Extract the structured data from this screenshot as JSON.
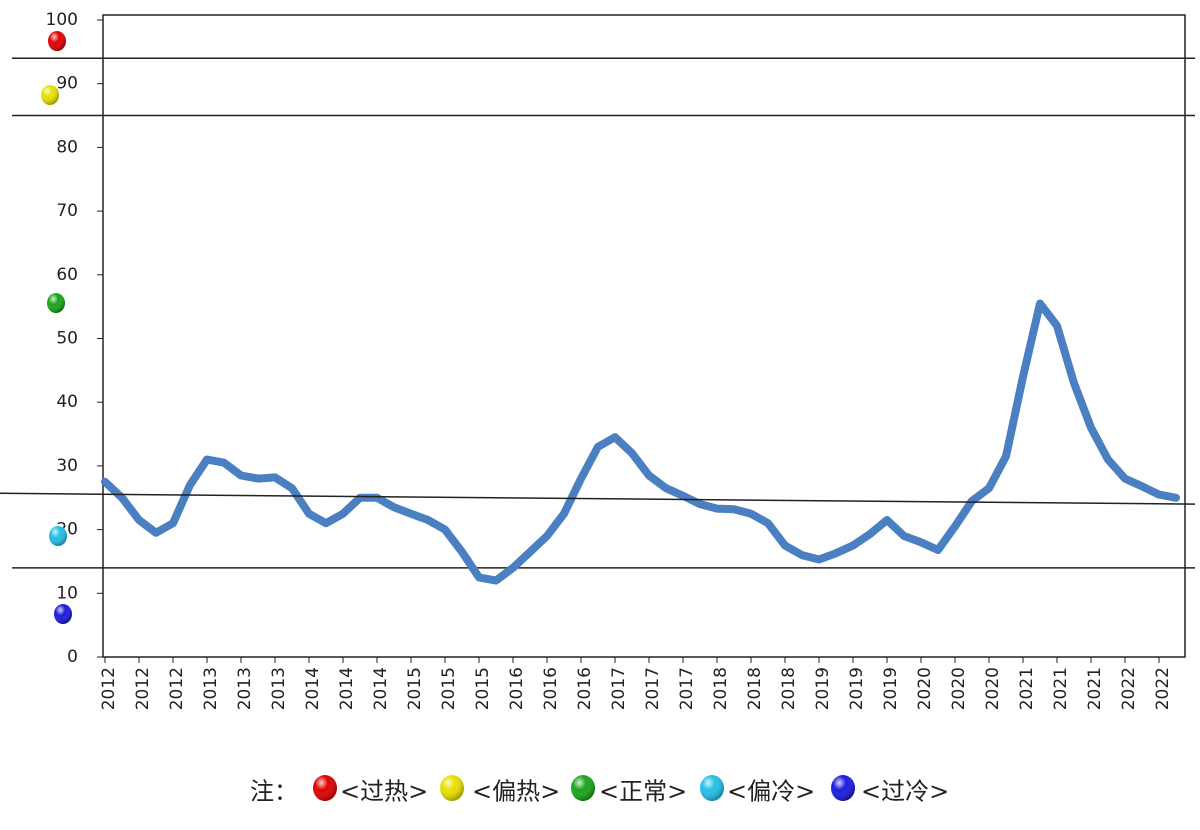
{
  "chart_data": {
    "type": "line",
    "categories": [
      "2012",
      null,
      "2012",
      null,
      "2012",
      null,
      "2013",
      null,
      "2013",
      null,
      "2013",
      null,
      "2014",
      null,
      "2014",
      null,
      "2014",
      null,
      "2015",
      null,
      "2015",
      null,
      "2015",
      null,
      "2016",
      null,
      "2016",
      null,
      "2016",
      null,
      "2017",
      null,
      "2017",
      null,
      "2017",
      null,
      "2018",
      null,
      "2018",
      null,
      "2018",
      null,
      "2019",
      null,
      "2019",
      null,
      "2019",
      null,
      "2020",
      null,
      "2020",
      null,
      "2020",
      null,
      "2021",
      null,
      "2021",
      null,
      "2021",
      null,
      "2022",
      null,
      "2022",
      null
    ],
    "series": [
      {
        "color": "#4a7fc1",
        "values": [
          27.5,
          25,
          21.5,
          19.5,
          21,
          27,
          31,
          30.5,
          28.5,
          28,
          28.2,
          26.5,
          22.5,
          21,
          22.5,
          25,
          25,
          23.5,
          22.5,
          21.5,
          20,
          16.5,
          12.5,
          12,
          14,
          16.5,
          19,
          22.5,
          28,
          33,
          34.5,
          32,
          28.5,
          26.5,
          25.3,
          24,
          23.3,
          23.2,
          22.5,
          21,
          17.5,
          16,
          15.3,
          16.3,
          17.5,
          19.3,
          21.5,
          19,
          18,
          16.8,
          20.5,
          24.5,
          26.5,
          31.5,
          44,
          55.5,
          52,
          43,
          36,
          31,
          28,
          26.8,
          25.5,
          25
        ]
      }
    ],
    "ylim": [
      0,
      100
    ],
    "yticks": [
      0,
      10,
      20,
      30,
      40,
      50,
      60,
      70,
      80,
      90,
      100
    ],
    "reference_lines": [
      94,
      85,
      14
    ],
    "trend_line": [
      25.7,
      24.0
    ],
    "legend_title": "注：",
    "legend": [
      {
        "name": "<过热>",
        "color": "#e00000"
      },
      {
        "name": "<偏热>",
        "color": "#e8e000"
      },
      {
        "name": "<正常>",
        "color": "#1aa51a"
      },
      {
        "name": "<偏冷>",
        "color": "#20c0e8"
      },
      {
        "name": "<过冷>",
        "color": "#1a1ae0"
      }
    ]
  }
}
